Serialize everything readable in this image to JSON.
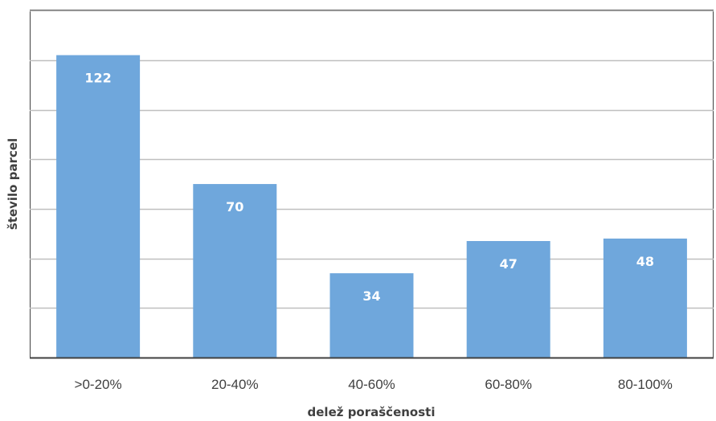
{
  "chart_data": {
    "type": "bar",
    "categories": [
      ">0-20%",
      "20-40%",
      "40-60%",
      "60-80%",
      "80-100%"
    ],
    "values": [
      122,
      70,
      34,
      47,
      48
    ],
    "title": "",
    "xlabel": "delež poraščenosti",
    "ylabel": "število parcel",
    "ylim": [
      0,
      140
    ],
    "grid": true,
    "bar_color": "#6fa7dc",
    "grid_color": "#bfbfbf",
    "data_labels": true
  }
}
